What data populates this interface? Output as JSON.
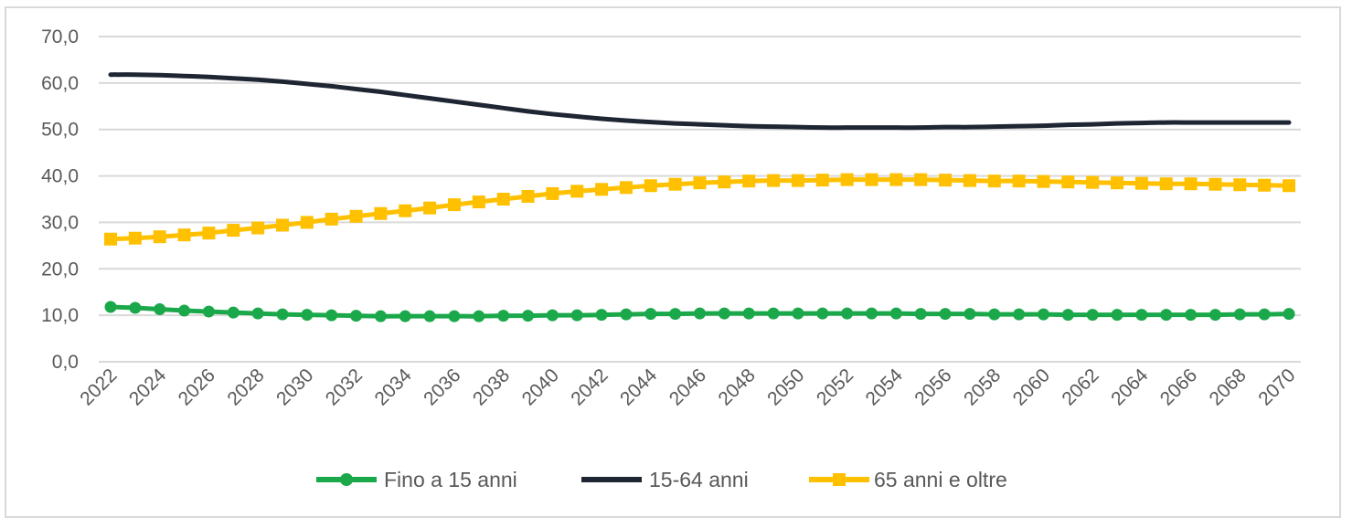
{
  "chart_data": {
    "type": "line",
    "x": [
      2022,
      2023,
      2024,
      2025,
      2026,
      2027,
      2028,
      2029,
      2030,
      2031,
      2032,
      2033,
      2034,
      2035,
      2036,
      2037,
      2038,
      2039,
      2040,
      2041,
      2042,
      2043,
      2044,
      2045,
      2046,
      2047,
      2048,
      2049,
      2050,
      2051,
      2052,
      2053,
      2054,
      2055,
      2056,
      2057,
      2058,
      2059,
      2060,
      2061,
      2062,
      2063,
      2064,
      2065,
      2066,
      2067,
      2068,
      2069,
      2070
    ],
    "x_tick_labels": [
      "2022",
      "2024",
      "2026",
      "2028",
      "2030",
      "2032",
      "2034",
      "2036",
      "2038",
      "2040",
      "2042",
      "2044",
      "2046",
      "2048",
      "2050",
      "2052",
      "2054",
      "2056",
      "2058",
      "2060",
      "2062",
      "2064",
      "2066",
      "2068",
      "2070"
    ],
    "y_tick_labels": [
      "0,0",
      "10,0",
      "20,0",
      "30,0",
      "40,0",
      "50,0",
      "60,0",
      "70,0"
    ],
    "ylim": [
      0,
      70
    ],
    "grid": true,
    "legend_position": "bottom",
    "title": "",
    "xlabel": "",
    "ylabel": "",
    "series": [
      {
        "name": "Fino a 15 anni",
        "color": "#1aa84a",
        "marker": "circle",
        "values": [
          11.8,
          11.6,
          11.3,
          11.0,
          10.8,
          10.6,
          10.4,
          10.2,
          10.1,
          10.0,
          9.9,
          9.8,
          9.8,
          9.8,
          9.8,
          9.8,
          9.9,
          9.9,
          10.0,
          10.0,
          10.1,
          10.2,
          10.3,
          10.3,
          10.4,
          10.4,
          10.4,
          10.4,
          10.4,
          10.4,
          10.4,
          10.4,
          10.4,
          10.3,
          10.3,
          10.3,
          10.2,
          10.2,
          10.2,
          10.1,
          10.1,
          10.1,
          10.1,
          10.1,
          10.1,
          10.1,
          10.2,
          10.2,
          10.3
        ]
      },
      {
        "name": "15-64 anni",
        "color": "#1f2633",
        "marker": "none",
        "values": [
          61.8,
          61.8,
          61.7,
          61.5,
          61.3,
          61.0,
          60.7,
          60.3,
          59.8,
          59.3,
          58.7,
          58.1,
          57.4,
          56.7,
          56.0,
          55.3,
          54.6,
          53.9,
          53.3,
          52.8,
          52.3,
          51.9,
          51.6,
          51.3,
          51.1,
          50.9,
          50.7,
          50.6,
          50.5,
          50.4,
          50.4,
          50.4,
          50.4,
          50.4,
          50.5,
          50.5,
          50.6,
          50.7,
          50.8,
          51.0,
          51.1,
          51.3,
          51.4,
          51.5,
          51.5,
          51.5,
          51.5,
          51.5,
          51.5
        ]
      },
      {
        "name": "65 anni e oltre",
        "color": "#ffc000",
        "marker": "square",
        "values": [
          26.4,
          26.6,
          26.9,
          27.3,
          27.7,
          28.3,
          28.8,
          29.4,
          30.0,
          30.7,
          31.3,
          31.9,
          32.5,
          33.1,
          33.8,
          34.4,
          35.0,
          35.6,
          36.2,
          36.7,
          37.1,
          37.5,
          37.9,
          38.2,
          38.5,
          38.7,
          38.9,
          39.0,
          39.0,
          39.1,
          39.2,
          39.2,
          39.2,
          39.2,
          39.1,
          39.0,
          38.9,
          38.9,
          38.8,
          38.7,
          38.6,
          38.5,
          38.4,
          38.3,
          38.3,
          38.2,
          38.1,
          38.0,
          37.9
        ]
      }
    ]
  }
}
